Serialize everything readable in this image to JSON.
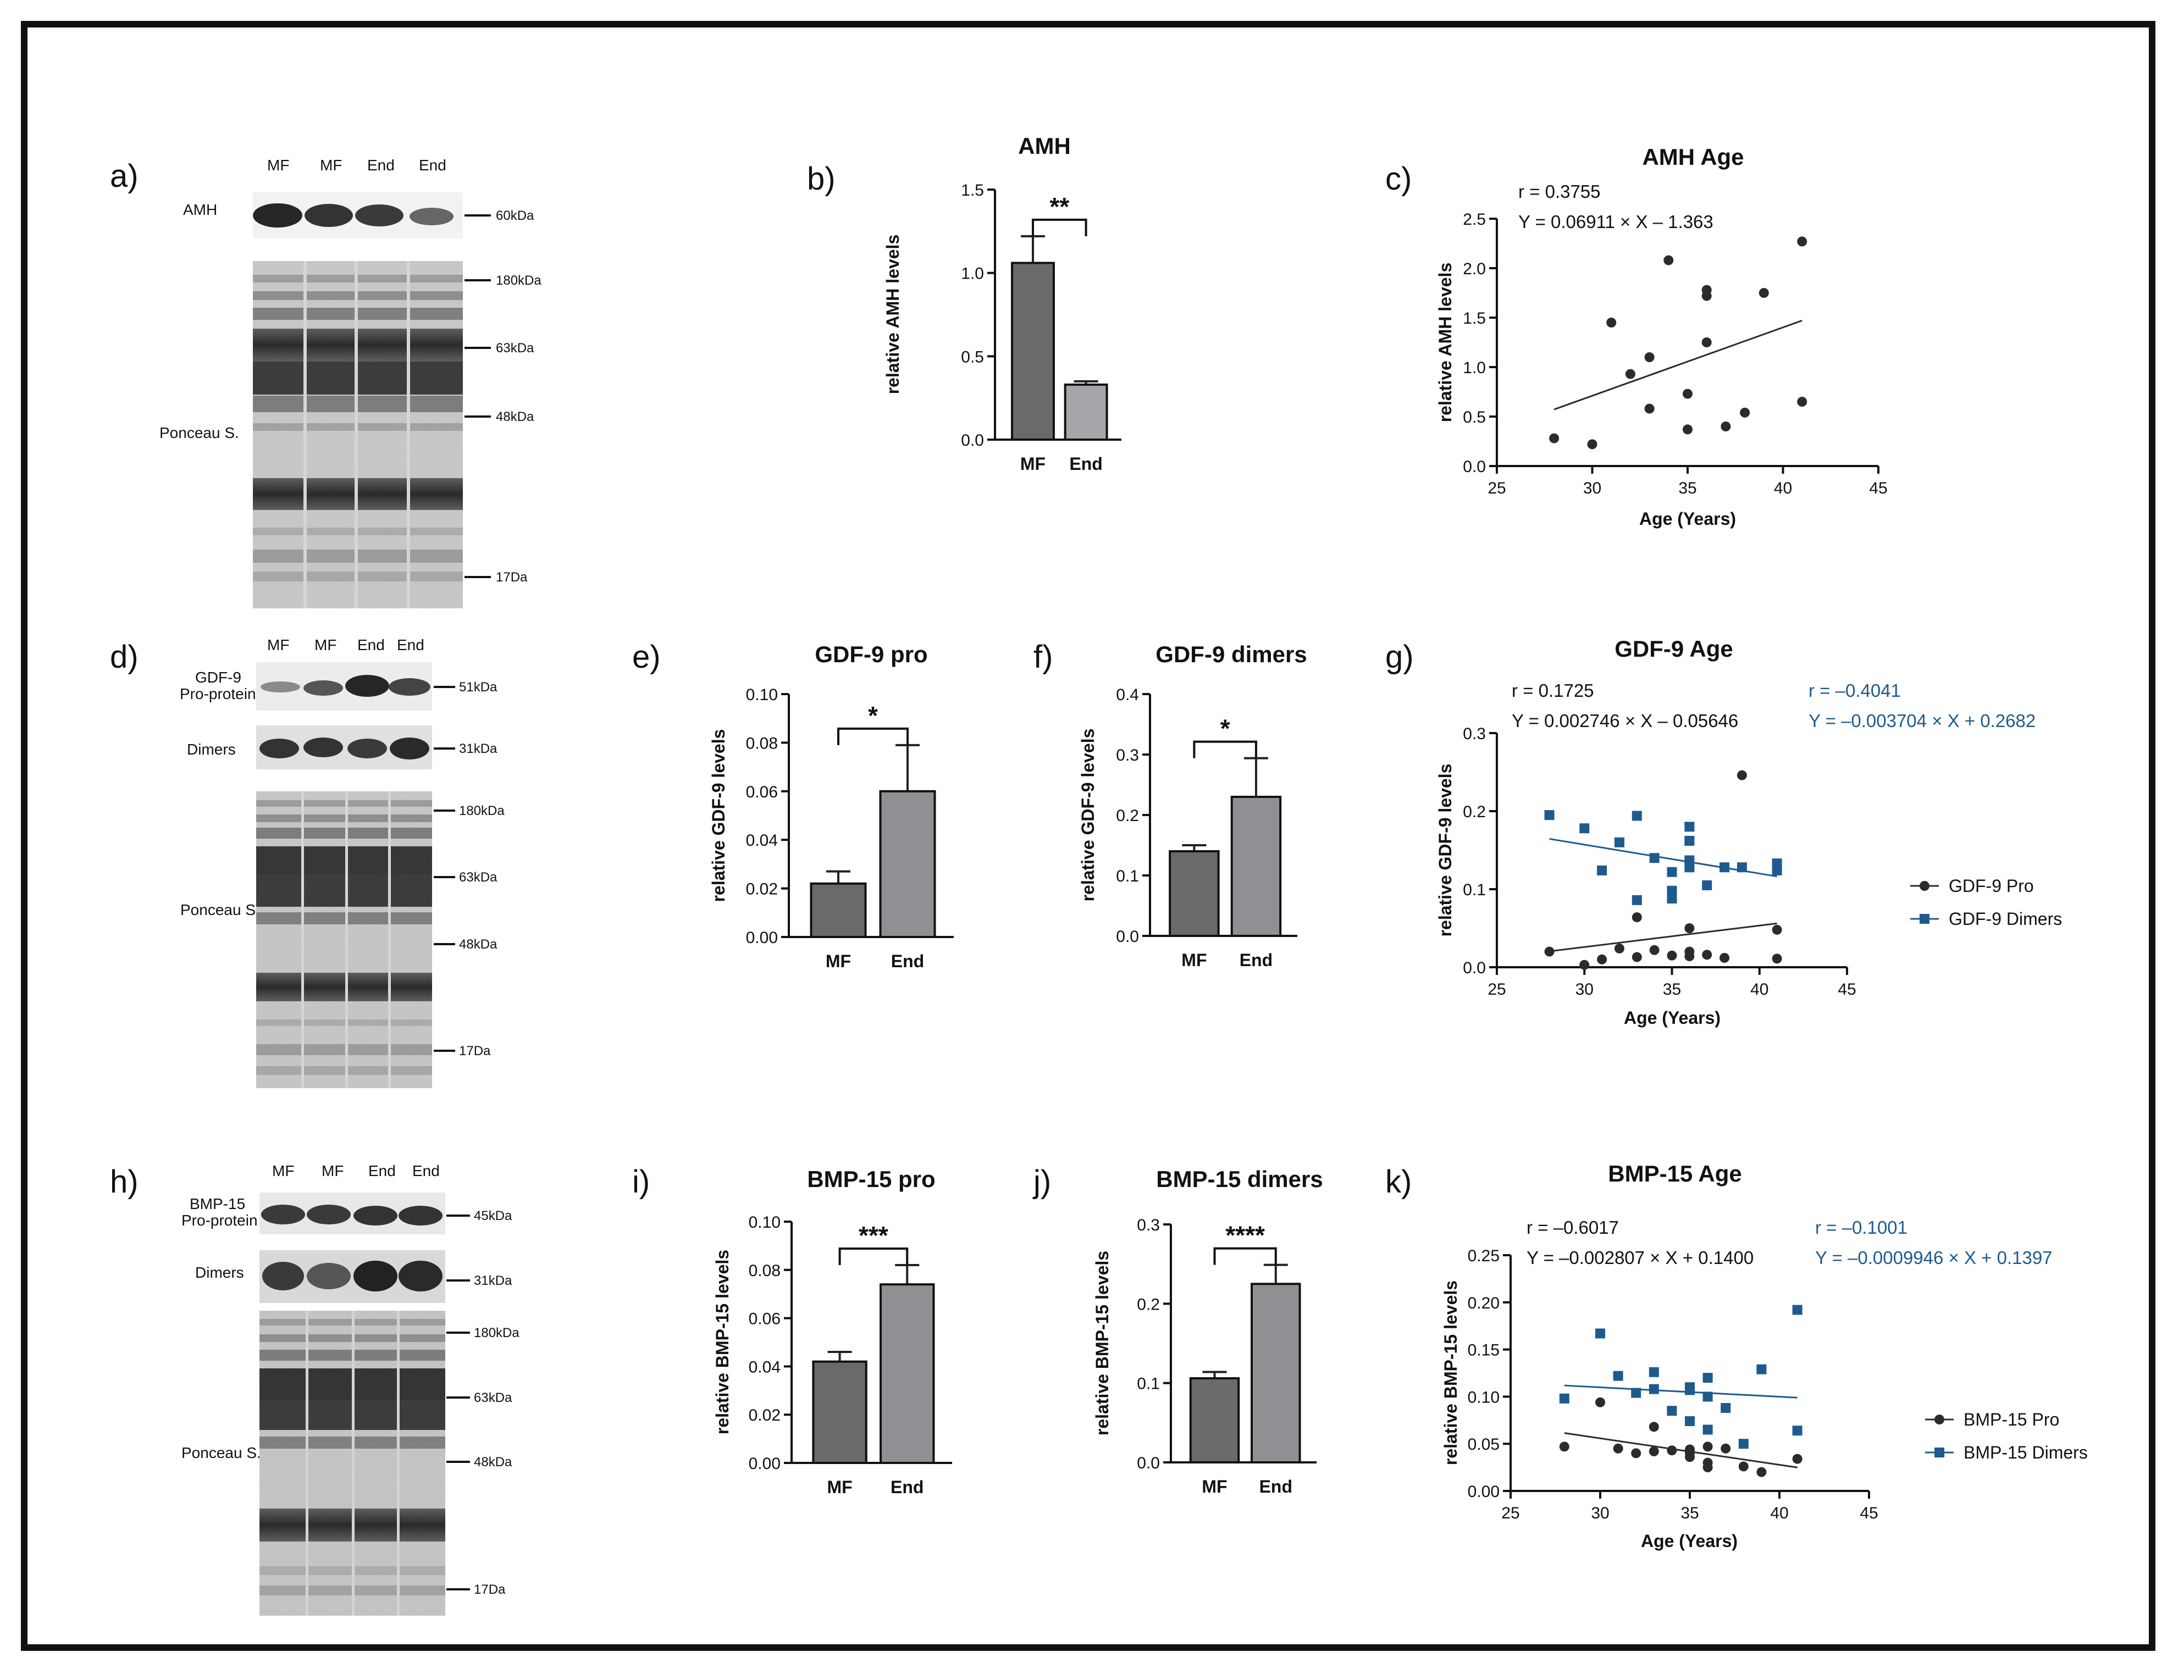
{
  "panels": {
    "a": {
      "label": "a)",
      "lanes": [
        "MF",
        "MF",
        "End",
        "End"
      ],
      "rows": [
        "AMH",
        "Ponceau S."
      ],
      "markers": [
        "60kDa",
        "180kDa",
        "63kDa",
        "48kDa",
        "17Da"
      ]
    },
    "d": {
      "label": "d)",
      "lanes": [
        "MF",
        "MF",
        "End",
        "End"
      ],
      "rows": [
        "GDF-9",
        "Pro-protein",
        "Dimers",
        "Ponceau S."
      ],
      "markers": [
        "51kDa",
        "31kDa",
        "180kDa",
        "63kDa",
        "48kDa",
        "17Da"
      ]
    },
    "h": {
      "label": "h)",
      "lanes": [
        "MF",
        "MF",
        "End",
        "End"
      ],
      "rows": [
        "BMP-15",
        "Pro-protein",
        "Dimers",
        "Ponceau S."
      ],
      "markers": [
        "45kDa",
        "31kDa",
        "180kDa",
        "63kDa",
        "48kDa",
        "17Da"
      ]
    }
  },
  "chart_data": [
    {
      "id": "b",
      "panel_label": "b)",
      "type": "bar",
      "title": "AMH",
      "ylabel": "relative AMH levels",
      "xlabel": "",
      "categories": [
        "MF",
        "End"
      ],
      "values": [
        1.06,
        0.33
      ],
      "errors": [
        0.16,
        0.02
      ],
      "colors": [
        "#6a6a6a",
        "#a6a6aa"
      ],
      "ylim": [
        0,
        1.5
      ],
      "yticks": [
        "0.0",
        "0.5",
        "1.0",
        "1.5"
      ],
      "significance": "**"
    },
    {
      "id": "c",
      "panel_label": "c)",
      "type": "scatter",
      "title": "AMH Age",
      "xlabel": "Age (Years)",
      "ylabel": "relative AMH levels",
      "xlim": [
        25,
        45
      ],
      "ylim": [
        0,
        2.5
      ],
      "xticks": [
        "25",
        "30",
        "35",
        "40",
        "45"
      ],
      "yticks": [
        "0.0",
        "0.5",
        "1.0",
        "1.5",
        "2.0",
        "2.5"
      ],
      "series": [
        {
          "name": "AMH",
          "color": "#2b2b2b",
          "marker": "circle",
          "x": [
            28,
            30,
            31,
            32,
            33,
            33,
            34,
            35,
            35,
            36,
            36,
            36,
            37,
            38,
            39,
            41,
            41
          ],
          "y": [
            0.28,
            0.22,
            1.45,
            0.93,
            1.1,
            0.58,
            2.08,
            0.73,
            0.37,
            1.78,
            1.72,
            1.25,
            0.4,
            0.54,
            1.75,
            2.27,
            0.65
          ],
          "r": "r = 0.3755",
          "eq": "Y = 0.06911 × X – 1.363",
          "slope": 0.06911,
          "intercept": -1.363
        }
      ]
    },
    {
      "id": "e",
      "panel_label": "e)",
      "type": "bar",
      "title": "GDF-9 pro",
      "ylabel": "relative GDF-9 levels",
      "xlabel": "",
      "categories": [
        "MF",
        "End"
      ],
      "values": [
        0.022,
        0.06
      ],
      "errors": [
        0.005,
        0.019
      ],
      "colors": [
        "#6a6a6a",
        "#8f8f94"
      ],
      "ylim": [
        0,
        0.1
      ],
      "yticks": [
        "0.00",
        "0.02",
        "0.04",
        "0.06",
        "0.08",
        "0.10"
      ],
      "significance": "*"
    },
    {
      "id": "f",
      "panel_label": "f)",
      "type": "bar",
      "title": "GDF-9 dimers",
      "ylabel": "relative GDF-9 levels",
      "xlabel": "",
      "categories": [
        "MF",
        "End"
      ],
      "values": [
        0.14,
        0.23
      ],
      "errors": [
        0.01,
        0.064
      ],
      "colors": [
        "#6a6a6a",
        "#8f8f94"
      ],
      "ylim": [
        0,
        0.4
      ],
      "yticks": [
        "0.0",
        "0.1",
        "0.2",
        "0.3",
        "0.4"
      ],
      "significance": "*"
    },
    {
      "id": "g",
      "panel_label": "g)",
      "type": "scatter",
      "title": "GDF-9 Age",
      "xlabel": "Age (Years)",
      "ylabel": "relative GDF-9 levels",
      "xlim": [
        25,
        45
      ],
      "ylim": [
        0,
        0.3
      ],
      "xticks": [
        "25",
        "30",
        "35",
        "40",
        "45"
      ],
      "yticks": [
        "0.0",
        "0.1",
        "0.2",
        "0.3"
      ],
      "series": [
        {
          "name": "GDF-9 Pro",
          "color": "#2b2b2b",
          "marker": "circle",
          "x": [
            28,
            30,
            31,
            32,
            33,
            33,
            34,
            35,
            35,
            36,
            36,
            36,
            37,
            38,
            39,
            41,
            41
          ],
          "y": [
            0.02,
            0.003,
            0.01,
            0.024,
            0.064,
            0.013,
            0.022,
            0.015,
            0.09,
            0.05,
            0.02,
            0.014,
            0.016,
            0.012,
            0.246,
            0.048,
            0.011
          ],
          "r": "r = 0.1725",
          "eq": "Y = 0.002746 × X – 0.05646",
          "slope": 0.002746,
          "intercept": -0.05646
        },
        {
          "name": "GDF-9 Dimers",
          "color": "#1e5a8e",
          "marker": "square",
          "x": [
            28,
            30,
            31,
            32,
            33,
            33,
            34,
            35,
            35,
            35,
            36,
            36,
            36,
            36,
            37,
            38,
            39,
            41,
            41
          ],
          "y": [
            0.195,
            0.178,
            0.124,
            0.16,
            0.194,
            0.086,
            0.14,
            0.122,
            0.098,
            0.088,
            0.18,
            0.162,
            0.137,
            0.128,
            0.105,
            0.128,
            0.128,
            0.133,
            0.124
          ],
          "r": "r = –0.4041",
          "eq": "Y = –0.003704 × X + 0.2682",
          "slope": -0.003704,
          "intercept": 0.2682
        }
      ]
    },
    {
      "id": "i",
      "panel_label": "i)",
      "type": "bar",
      "title": "BMP-15 pro",
      "ylabel": "relative BMP-15 levels",
      "xlabel": "",
      "categories": [
        "MF",
        "End"
      ],
      "values": [
        0.042,
        0.074
      ],
      "errors": [
        0.004,
        0.008
      ],
      "colors": [
        "#6a6a6a",
        "#8f8f94"
      ],
      "ylim": [
        0,
        0.1
      ],
      "yticks": [
        "0.00",
        "0.02",
        "0.04",
        "0.06",
        "0.08",
        "0.10"
      ],
      "significance": "***"
    },
    {
      "id": "j",
      "panel_label": "j)",
      "type": "bar",
      "title": "BMP-15 dimers",
      "ylabel": "relative BMP-15 levels",
      "xlabel": "",
      "categories": [
        "MF",
        "End"
      ],
      "values": [
        0.106,
        0.225
      ],
      "errors": [
        0.008,
        0.024
      ],
      "colors": [
        "#6a6a6a",
        "#8f8f94"
      ],
      "ylim": [
        0,
        0.3
      ],
      "yticks": [
        "0.0",
        "0.1",
        "0.2",
        "0.3"
      ],
      "significance": "****"
    },
    {
      "id": "k",
      "panel_label": "k)",
      "type": "scatter",
      "title": "BMP-15 Age",
      "xlabel": "Age (Years)",
      "ylabel": "relative BMP-15 levels",
      "xlim": [
        25,
        45
      ],
      "ylim": [
        0,
        0.25
      ],
      "xticks": [
        "25",
        "30",
        "35",
        "40",
        "45"
      ],
      "yticks": [
        "0.00",
        "0.05",
        "0.10",
        "0.15",
        "0.20",
        "0.25"
      ],
      "series": [
        {
          "name": "BMP-15 Pro",
          "color": "#2b2b2b",
          "marker": "circle",
          "x": [
            28,
            30,
            31,
            32,
            33,
            33,
            34,
            35,
            35,
            35,
            36,
            36,
            36,
            37,
            38,
            39,
            41
          ],
          "y": [
            0.047,
            0.094,
            0.045,
            0.04,
            0.068,
            0.042,
            0.043,
            0.04,
            0.036,
            0.044,
            0.047,
            0.025,
            0.03,
            0.045,
            0.026,
            0.02,
            0.034
          ],
          "r": "r = –0.6017",
          "eq": "Y = –0.002807 × X + 0.1400",
          "slope": -0.002807,
          "intercept": 0.14
        },
        {
          "name": "BMP-15 Dimers",
          "color": "#1e5a8e",
          "marker": "square",
          "x": [
            28,
            30,
            31,
            32,
            33,
            33,
            34,
            35,
            35,
            35,
            36,
            36,
            36,
            37,
            38,
            39,
            41,
            41
          ],
          "y": [
            0.098,
            0.167,
            0.122,
            0.104,
            0.126,
            0.108,
            0.085,
            0.107,
            0.074,
            0.11,
            0.12,
            0.1,
            0.065,
            0.088,
            0.05,
            0.129,
            0.192,
            0.064
          ],
          "r": "r = –0.1001",
          "eq": "Y = –0.0009946 × X + 0.1397",
          "slope": -0.0009946,
          "intercept": 0.1397
        }
      ]
    }
  ]
}
